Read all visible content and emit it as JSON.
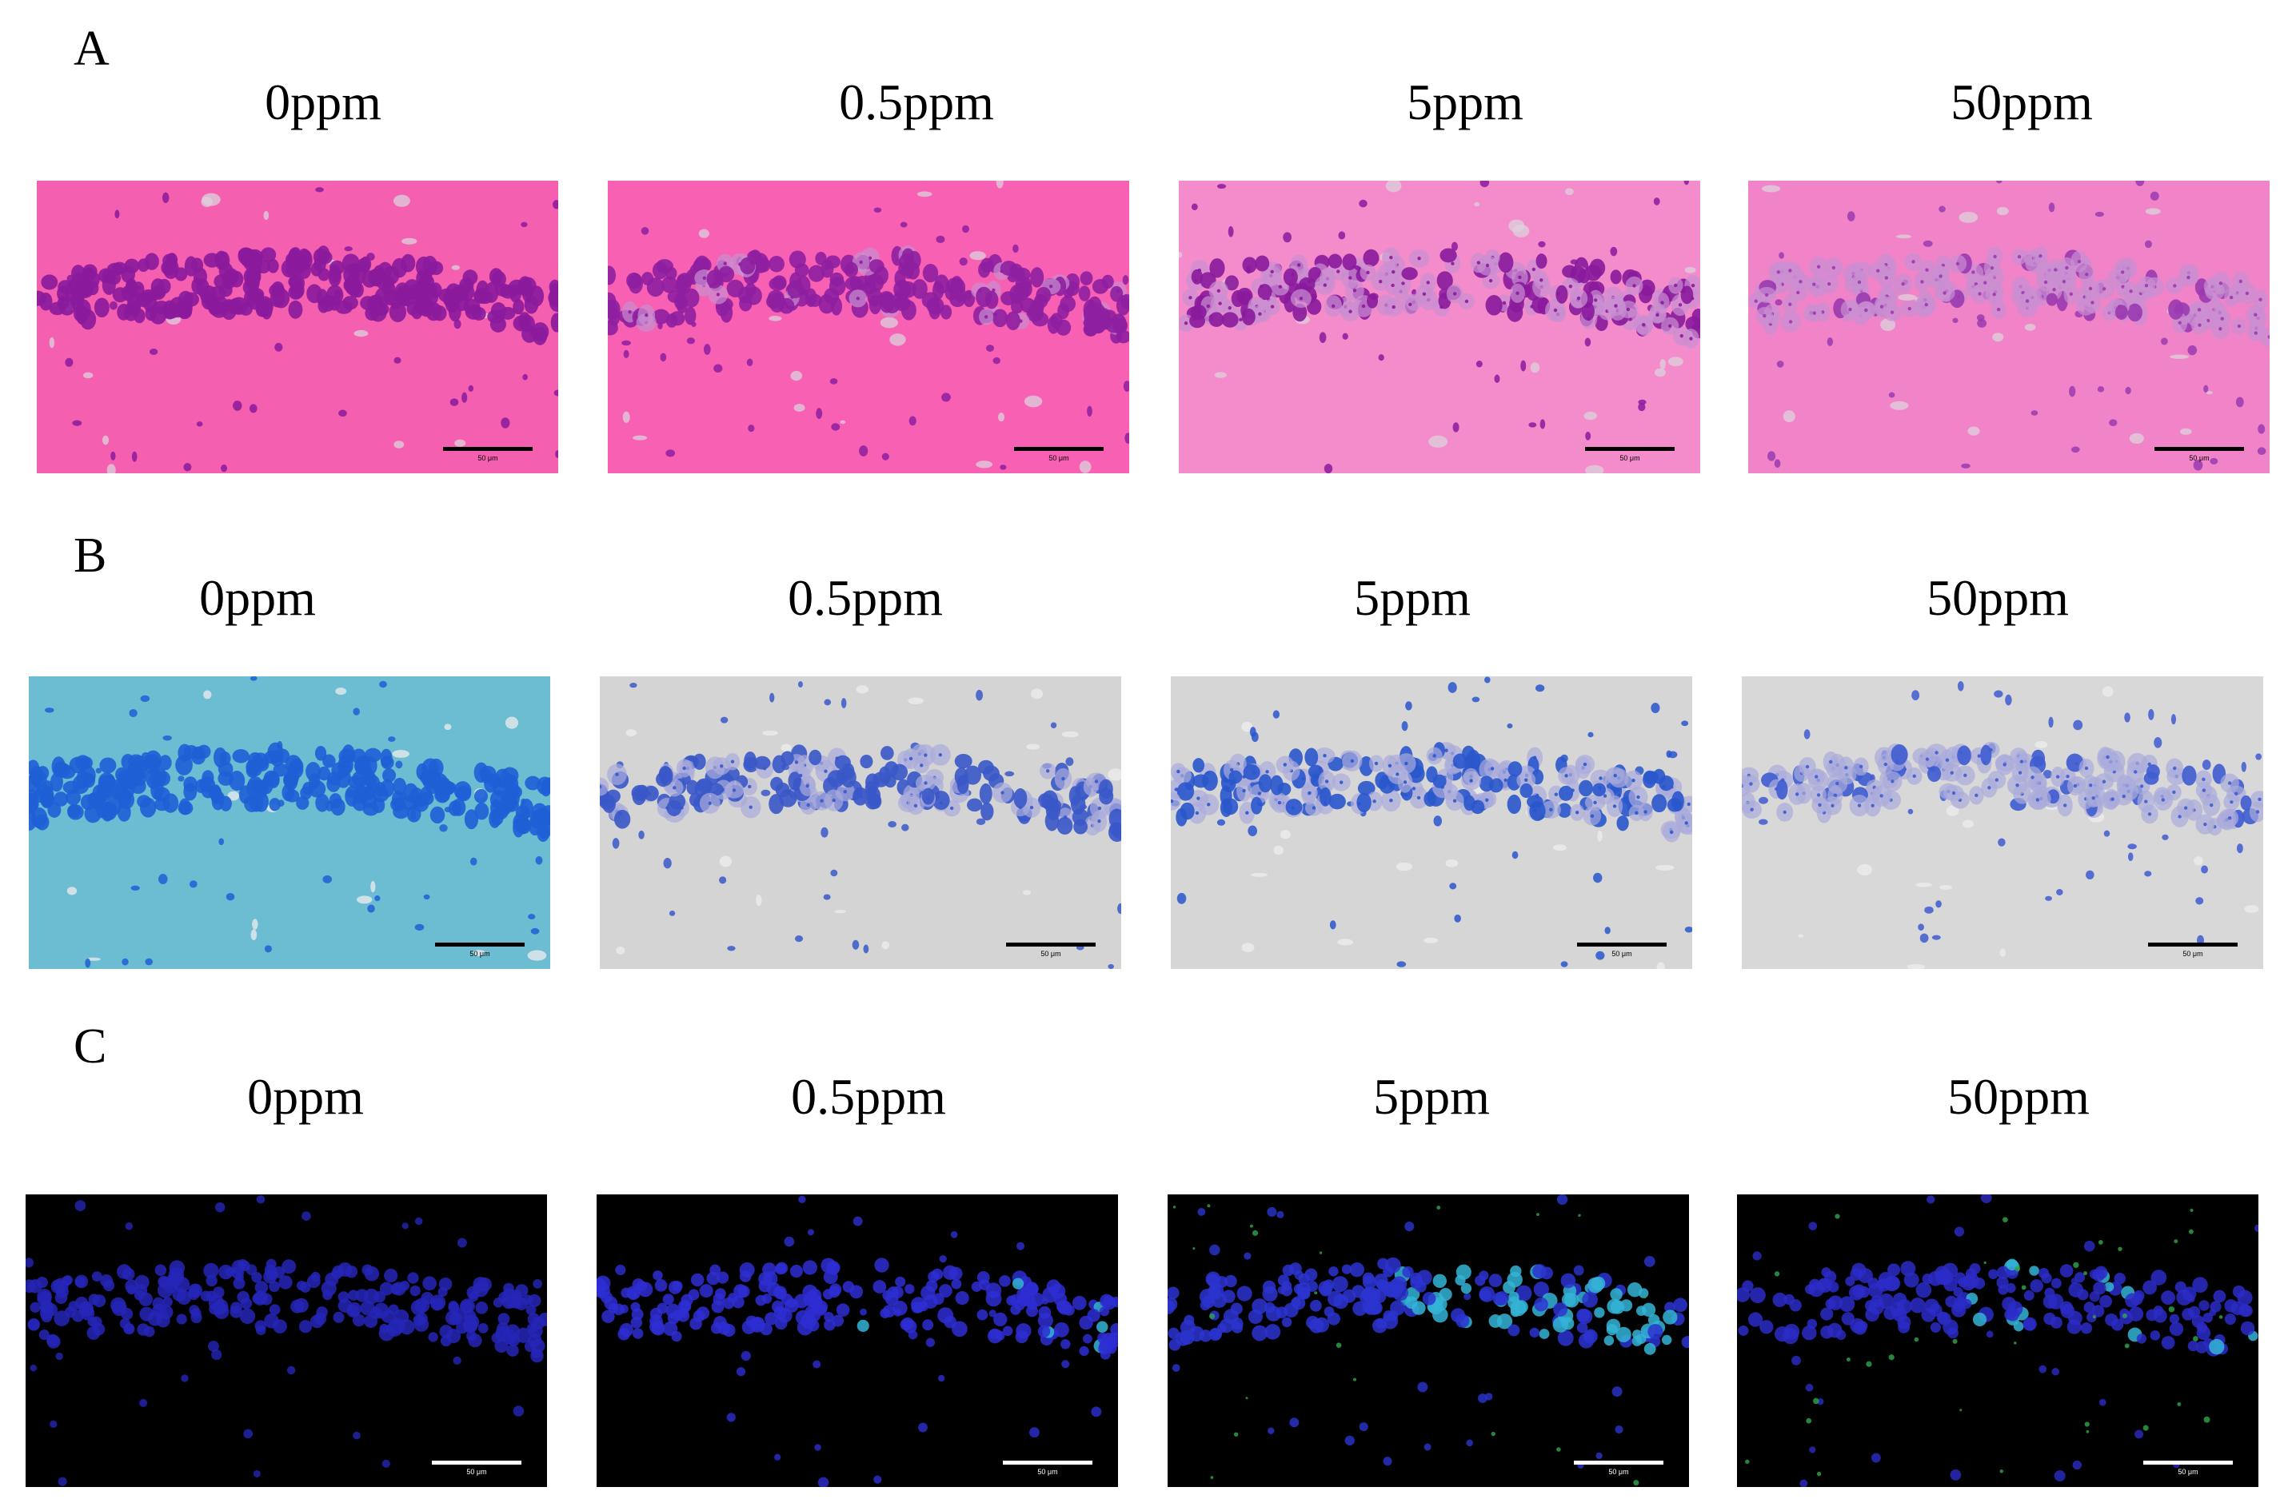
{
  "panels": [
    {
      "letter": "A",
      "stain": "he",
      "labels": [
        "0ppm",
        "0.5ppm",
        "5ppm",
        "50ppm"
      ],
      "scale_bar": "50 μm",
      "colors": {
        "background": "#f45fb0",
        "cell": "#8a1a9c",
        "faint_cell": "#c98fd2",
        "vessel": "#d9cdd6"
      }
    },
    {
      "letter": "B",
      "stain": "nissl",
      "labels": [
        "0ppm",
        "0.5ppm",
        "5ppm",
        "50ppm"
      ],
      "scale_bar": "50 μm",
      "colors": {
        "background_control": "#6cbcd2",
        "background": "#d3d3d3",
        "cell": "#2a5fcc",
        "faint_cell": "#a6a8d8"
      }
    },
    {
      "letter": "C",
      "stain": "fluorescence",
      "labels": [
        "0ppm",
        "0.5ppm",
        "5ppm",
        "50ppm"
      ],
      "scale_bar": "50 μm",
      "colors": {
        "background": "#000000",
        "nucleus": "#2a2ad0",
        "cyan": "#36b8d8",
        "green": "#2fa84a"
      }
    }
  ]
}
